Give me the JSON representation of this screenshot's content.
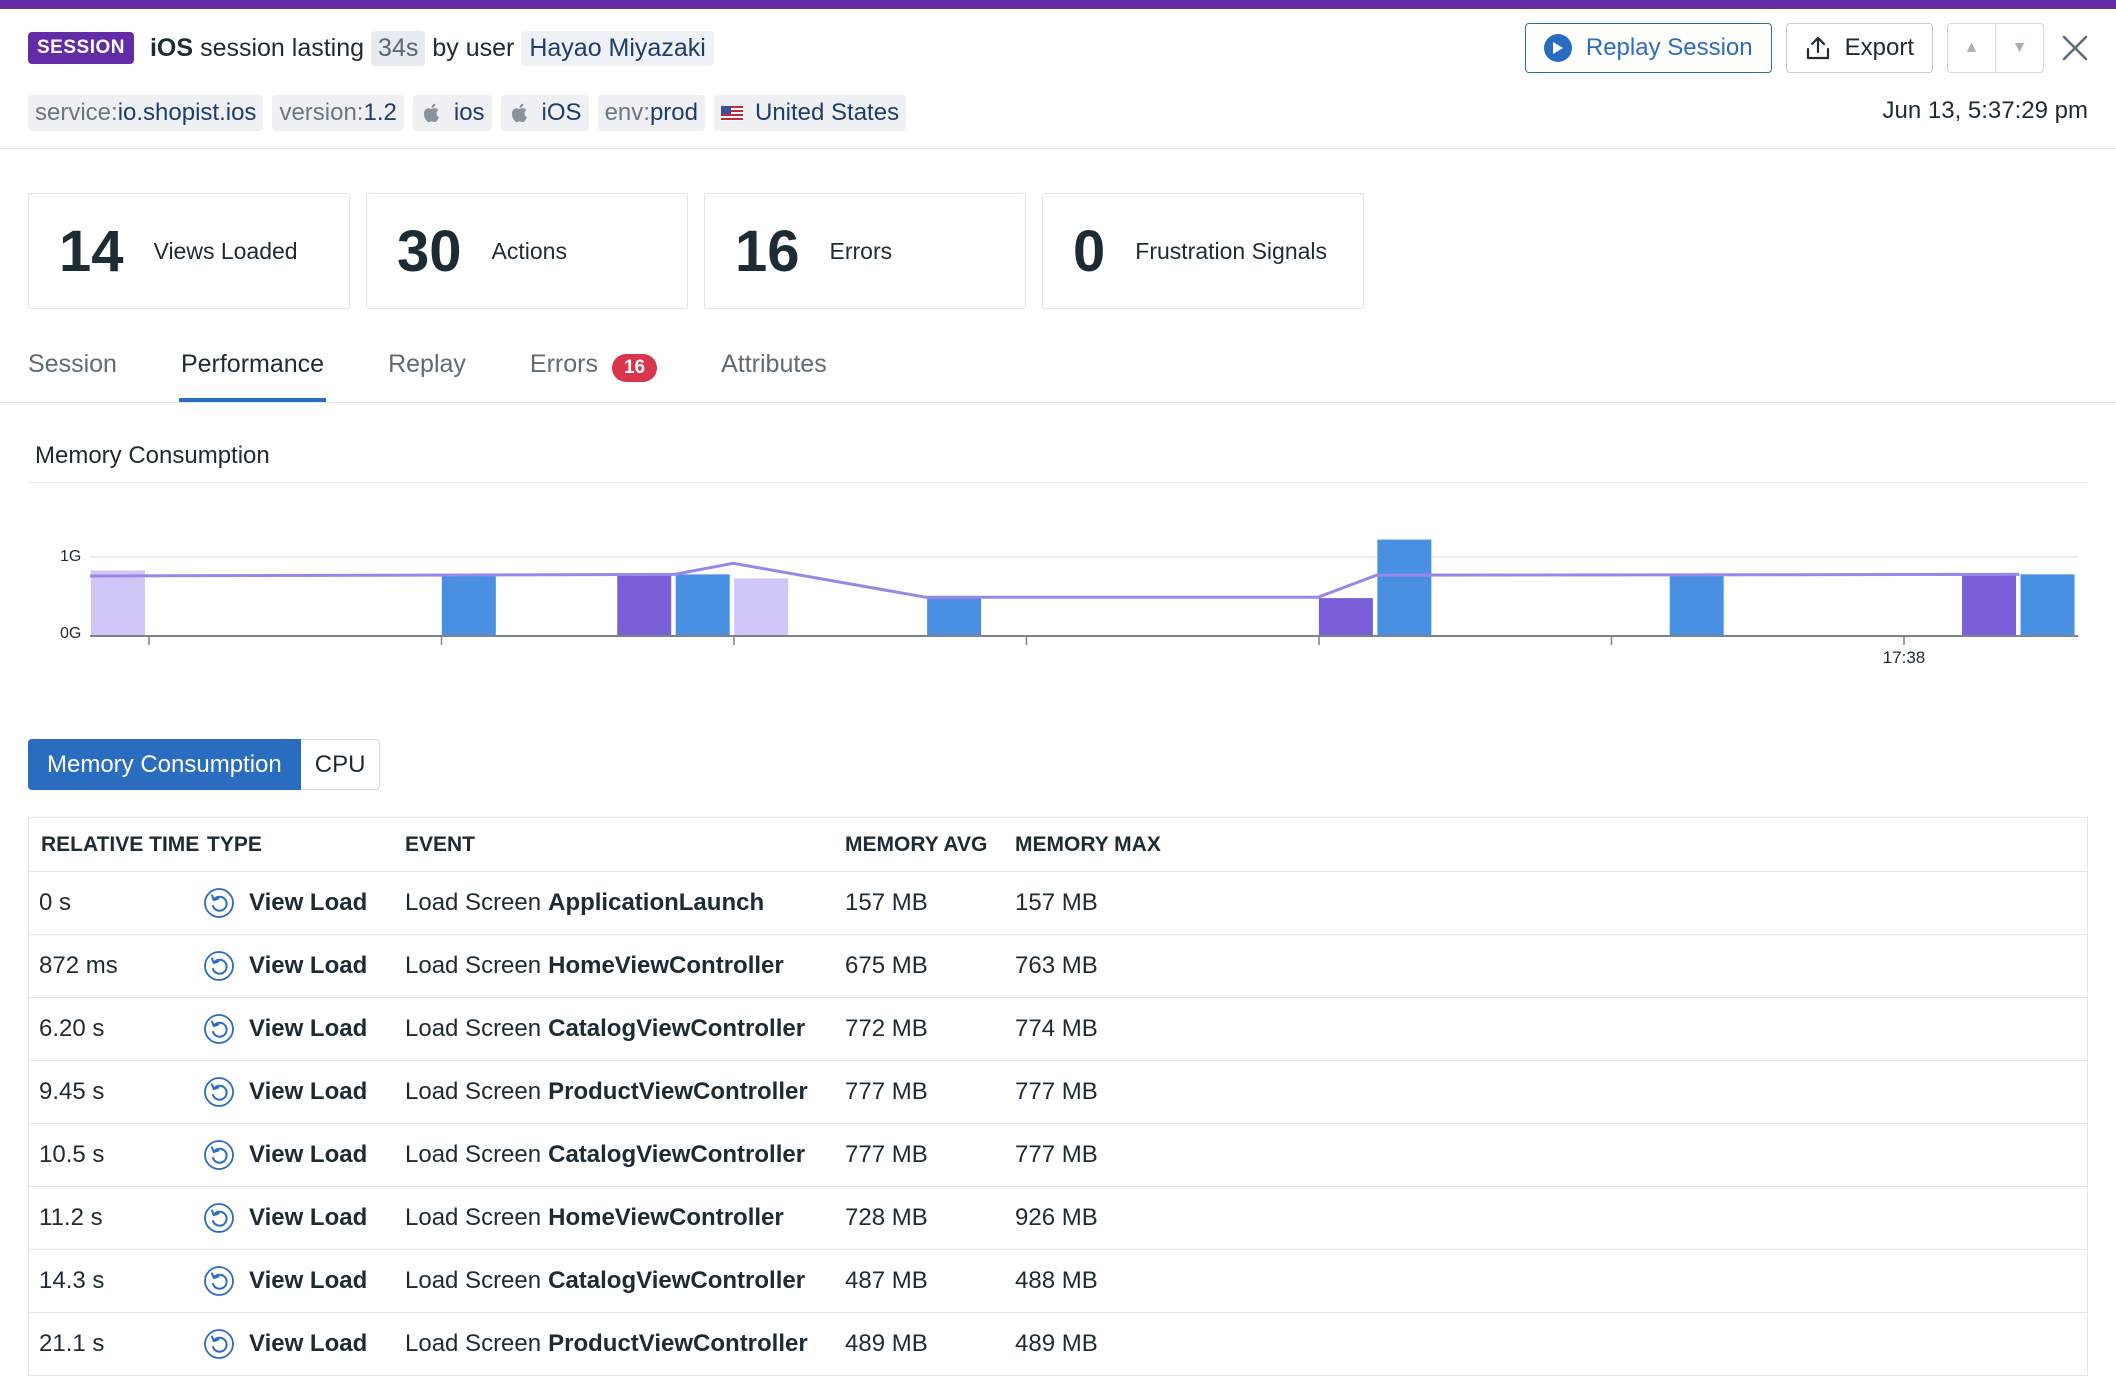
{
  "header": {
    "badge": "SESSION",
    "platform": "iOS",
    "session_text": "session lasting",
    "duration": "34s",
    "by_user_text": "by user",
    "user": "Hayao Miyazaki",
    "replay_label": "Replay Session",
    "export_label": "Export",
    "date": "Jun 13, 5:37:29 pm",
    "tags": [
      {
        "key": "service:",
        "value": "io.shopist.ios"
      },
      {
        "key": "version:",
        "value": "1.2"
      },
      {
        "key": "",
        "value": "ios",
        "icon": "apple-icon"
      },
      {
        "key": "",
        "value": "iOS",
        "icon": "apple-icon"
      },
      {
        "key": "env:",
        "value": "prod"
      },
      {
        "key": "",
        "value": "United States",
        "icon": "us-flag-icon"
      }
    ]
  },
  "stats": [
    {
      "value": "14",
      "label": "Views Loaded"
    },
    {
      "value": "30",
      "label": "Actions"
    },
    {
      "value": "16",
      "label": "Errors"
    },
    {
      "value": "0",
      "label": "Frustration Signals"
    }
  ],
  "tabs": [
    {
      "label": "Session",
      "active": false
    },
    {
      "label": "Performance",
      "active": true
    },
    {
      "label": "Replay",
      "active": false
    },
    {
      "label": "Errors",
      "active": false,
      "badge": "16"
    },
    {
      "label": "Attributes",
      "active": false
    }
  ],
  "memory_section": {
    "title": "Memory Consumption"
  },
  "chart_data": {
    "type": "bar",
    "ylabel_ticks": [
      "0G",
      "1G"
    ],
    "x_tick_label": "17:38",
    "ylim": [
      0,
      1.2
    ],
    "colors": {
      "blue": "#4a90e2",
      "purple": "#7b5fd9",
      "lavender": "#d2c6f6",
      "line": "#9a86e8"
    },
    "bars": [
      {
        "t": 0.0,
        "value": 0.83,
        "color": "lavender"
      },
      {
        "t": 6.0,
        "value": 0.78,
        "color": "blue"
      },
      {
        "t": 9.0,
        "value": 0.78,
        "color": "purple"
      },
      {
        "t": 10.0,
        "value": 0.78,
        "color": "blue"
      },
      {
        "t": 11.0,
        "value": 0.73,
        "color": "lavender"
      },
      {
        "t": 14.3,
        "value": 0.48,
        "color": "blue"
      },
      {
        "t": 21.0,
        "value": 0.48,
        "color": "purple"
      },
      {
        "t": 22.0,
        "value": 1.22,
        "color": "blue"
      },
      {
        "t": 27.0,
        "value": 0.78,
        "color": "blue"
      },
      {
        "t": 32.0,
        "value": 0.78,
        "color": "purple"
      },
      {
        "t": 33.0,
        "value": 0.78,
        "color": "blue"
      }
    ],
    "line": [
      {
        "t": 0.0,
        "value": 0.76
      },
      {
        "t": 10.0,
        "value": 0.78
      },
      {
        "t": 11.0,
        "value": 0.92
      },
      {
        "t": 14.3,
        "value": 0.49
      },
      {
        "t": 21.0,
        "value": 0.49
      },
      {
        "t": 22.0,
        "value": 0.77
      },
      {
        "t": 33.0,
        "value": 0.78
      }
    ]
  },
  "toggle": {
    "memory_label": "Memory Consumption",
    "cpu_label": "CPU"
  },
  "table": {
    "headers": [
      "RELATIVE TIME",
      "TYPE",
      "EVENT",
      "MEMORY AVG",
      "MEMORY MAX"
    ],
    "rows": [
      {
        "time": "0 s",
        "type": "View Load",
        "prefix": "Load Screen",
        "screen": "ApplicationLaunch",
        "avg": "157 MB",
        "max": "157 MB"
      },
      {
        "time": "872 ms",
        "type": "View Load",
        "prefix": "Load Screen",
        "screen": "HomeViewController",
        "avg": "675 MB",
        "max": "763 MB"
      },
      {
        "time": "6.20 s",
        "type": "View Load",
        "prefix": "Load Screen",
        "screen": "CatalogViewController",
        "avg": "772 MB",
        "max": "774 MB"
      },
      {
        "time": "9.45 s",
        "type": "View Load",
        "prefix": "Load Screen",
        "screen": "ProductViewController",
        "avg": "777 MB",
        "max": "777 MB"
      },
      {
        "time": "10.5 s",
        "type": "View Load",
        "prefix": "Load Screen",
        "screen": "CatalogViewController",
        "avg": "777 MB",
        "max": "777 MB"
      },
      {
        "time": "11.2 s",
        "type": "View Load",
        "prefix": "Load Screen",
        "screen": "HomeViewController",
        "avg": "728 MB",
        "max": "926 MB"
      },
      {
        "time": "14.3 s",
        "type": "View Load",
        "prefix": "Load Screen",
        "screen": "CatalogViewController",
        "avg": "487 MB",
        "max": "488 MB"
      },
      {
        "time": "21.1 s",
        "type": "View Load",
        "prefix": "Load Screen",
        "screen": "ProductViewController",
        "avg": "489 MB",
        "max": "489 MB"
      }
    ]
  }
}
